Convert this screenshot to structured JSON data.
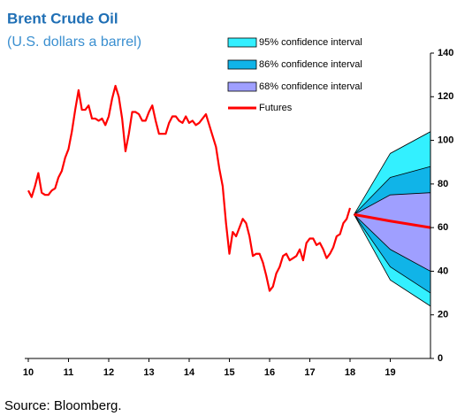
{
  "chart_data": {
    "type": "line",
    "title": "Brent Crude Oil",
    "subtitle": "(U.S. dollars a barrel)",
    "source": "Source: Bloomberg.",
    "xlim": [
      10,
      20
    ],
    "xticks": [
      10,
      11,
      12,
      13,
      14,
      15,
      16,
      17,
      18,
      19
    ],
    "ylim": [
      0,
      140
    ],
    "yticks": [
      0,
      20,
      40,
      60,
      80,
      100,
      120,
      140
    ],
    "series": [
      {
        "color": "#ff0000",
        "x_start": 10,
        "x_step_per_year": 12,
        "values": [
          77,
          74,
          79,
          85,
          76,
          75,
          75,
          77,
          78,
          83,
          86,
          92,
          96,
          104,
          114,
          123,
          114,
          114,
          116,
          110,
          110,
          109,
          110,
          107,
          111,
          119,
          125,
          120,
          110,
          95,
          103,
          113,
          113,
          112,
          109,
          109,
          113,
          116,
          109,
          103,
          103,
          103,
          108,
          111,
          111,
          109,
          108,
          111,
          108,
          109,
          107,
          108,
          110,
          112,
          107,
          102,
          97,
          87,
          79,
          62,
          48,
          58,
          56,
          60,
          64,
          62,
          56,
          47,
          48,
          48,
          44,
          38,
          31,
          33,
          39,
          42,
          47,
          48,
          45,
          46,
          47,
          50,
          45,
          53,
          55,
          55,
          52,
          53,
          50,
          46,
          48,
          51,
          56,
          57,
          62,
          64,
          69
        ]
      }
    ],
    "forecast_x": [
      18.1,
      19,
      20
    ],
    "bands": [
      {
        "name": "95% confidence interval",
        "color": "#33f0ff",
        "upper": [
          66,
          94,
          104
        ],
        "lower": [
          66,
          36,
          24
        ]
      },
      {
        "name": "86% confidence interval",
        "color": "#10b4e8",
        "upper": [
          66,
          83,
          88
        ],
        "lower": [
          66,
          42,
          30
        ]
      },
      {
        "name": "68% confidence interval",
        "color": "#9f9fff",
        "upper": [
          66,
          75,
          76
        ],
        "lower": [
          66,
          50,
          40
        ]
      }
    ],
    "futures": {
      "name": "Futures",
      "color": "#ff0000",
      "values": [
        66,
        63,
        60
      ]
    }
  }
}
